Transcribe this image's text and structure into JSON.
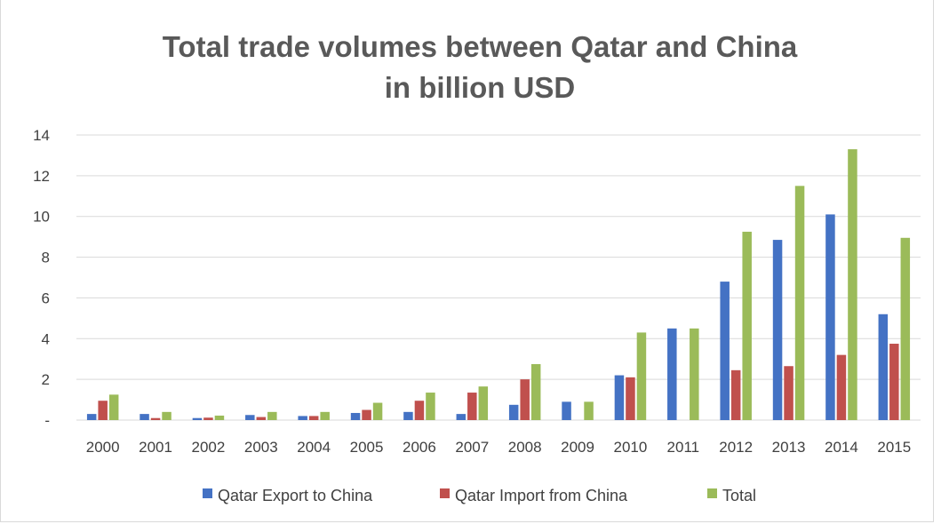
{
  "chart_data": {
    "type": "bar",
    "title_line1": "Total trade volumes between Qatar and China",
    "title_line2": "in billion USD",
    "xlabel": "",
    "ylabel": "",
    "categories": [
      "2000",
      "2001",
      "2002",
      "2003",
      "2004",
      "2005",
      "2006",
      "2007",
      "2008",
      "2009",
      "2010",
      "2011",
      "2012",
      "2013",
      "2014",
      "2015"
    ],
    "series": [
      {
        "name": "Qatar Export to China",
        "color": "#4472c4",
        "values": [
          0.3,
          0.3,
          0.1,
          0.25,
          0.2,
          0.35,
          0.4,
          0.3,
          0.75,
          0.9,
          2.2,
          4.5,
          6.8,
          8.85,
          10.1,
          5.2
        ]
      },
      {
        "name": "Qatar Import from China",
        "color": "#c0504d",
        "values": [
          0.95,
          0.1,
          0.12,
          0.15,
          0.2,
          0.5,
          0.95,
          1.35,
          2.0,
          0,
          2.1,
          0,
          2.45,
          2.65,
          3.2,
          3.75
        ]
      },
      {
        "name": "Total",
        "color": "#9bbb59",
        "values": [
          1.25,
          0.4,
          0.22,
          0.4,
          0.4,
          0.85,
          1.35,
          1.65,
          2.75,
          0.9,
          4.3,
          4.5,
          9.25,
          11.5,
          13.3,
          8.95
        ]
      }
    ],
    "ylim": [
      0,
      14
    ],
    "yticks": [
      "-",
      "2",
      "4",
      "6",
      "8",
      "10",
      "12",
      "14"
    ],
    "ytick_values": [
      0,
      2,
      4,
      6,
      8,
      10,
      12,
      14
    ],
    "grid": true,
    "legend_position": "bottom"
  }
}
